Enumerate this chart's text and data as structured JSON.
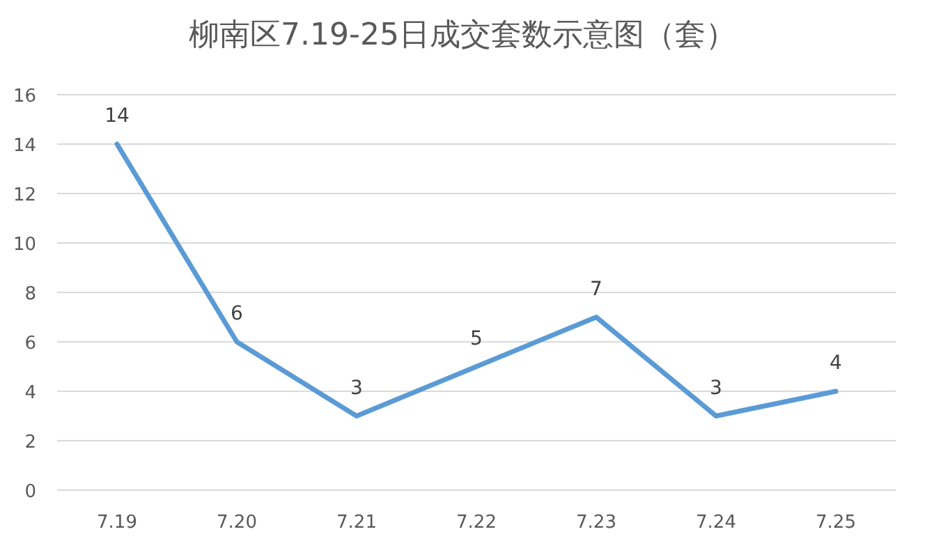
{
  "chart_data": {
    "type": "line",
    "title": "柳南区7.19-25日成交套数示意图（套）",
    "categories": [
      "7.19",
      "7.20",
      "7.21",
      "7.22",
      "7.23",
      "7.24",
      "7.25"
    ],
    "series": [
      {
        "color": "#5b9bd5",
        "values": [
          14,
          6,
          3,
          5,
          7,
          3,
          4
        ]
      }
    ],
    "ylim": [
      0,
      16
    ],
    "yticks": [
      0,
      2,
      4,
      6,
      8,
      10,
      12,
      14,
      16
    ],
    "grid": "y",
    "data_labels": true,
    "marker": "none",
    "line_style": "solid"
  }
}
